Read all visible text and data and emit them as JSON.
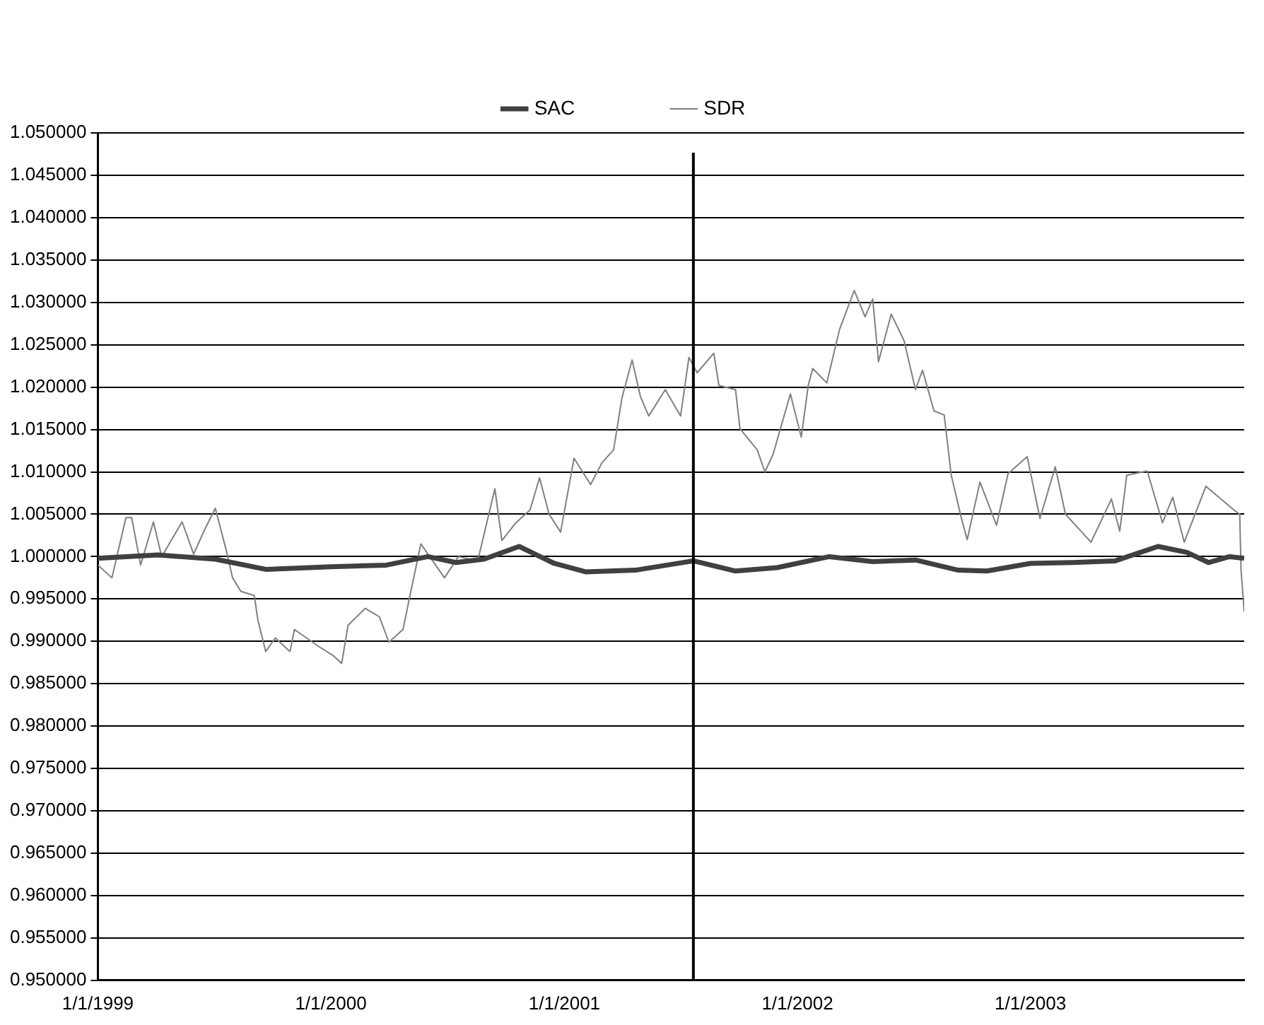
{
  "chart_data": {
    "type": "line",
    "legend": "top",
    "grid": "y",
    "marker": "none",
    "line_style": "solid",
    "xlim": [
      "1999-01-01",
      "2003-12-02"
    ],
    "xticks": [
      {
        "value": "1999-01-01",
        "label": "1/1/1999"
      },
      {
        "value": "2000-01-01",
        "label": "1/1/2000"
      },
      {
        "value": "2001-01-01",
        "label": "1/1/2001"
      },
      {
        "value": "2002-01-01",
        "label": "1/1/2002"
      },
      {
        "value": "2003-01-01",
        "label": "1/1/2003"
      }
    ],
    "ylim": [
      0.95,
      1.05
    ],
    "yticks": [
      {
        "value": 0.95,
        "label": "0.950000"
      },
      {
        "value": 0.955,
        "label": "0.955000"
      },
      {
        "value": 0.96,
        "label": "0.960000"
      },
      {
        "value": 0.965,
        "label": "0.965000"
      },
      {
        "value": 0.97,
        "label": "0.970000"
      },
      {
        "value": 0.975,
        "label": "0.975000"
      },
      {
        "value": 0.98,
        "label": "0.980000"
      },
      {
        "value": 0.985,
        "label": "0.985000"
      },
      {
        "value": 0.99,
        "label": "0.990000"
      },
      {
        "value": 0.995,
        "label": "0.995000"
      },
      {
        "value": 1.0,
        "label": "1.000000"
      },
      {
        "value": 1.005,
        "label": "1.005000"
      },
      {
        "value": 1.01,
        "label": "1.010000"
      },
      {
        "value": 1.015,
        "label": "1.015000"
      },
      {
        "value": 1.02,
        "label": "1.020000"
      },
      {
        "value": 1.025,
        "label": "1.025000"
      },
      {
        "value": 1.03,
        "label": "1.030000"
      },
      {
        "value": 1.035,
        "label": "1.035000"
      },
      {
        "value": 1.04,
        "label": "1.040000"
      },
      {
        "value": 1.045,
        "label": "1.045000"
      },
      {
        "value": 1.05,
        "label": "1.050000"
      }
    ],
    "ref_lines": [
      {
        "axis": "x",
        "value": "2001-07-22",
        "color": "#000000"
      }
    ],
    "series": [
      {
        "name": "SAC",
        "color": "#404040",
        "x": [
          "1999-01-01",
          "1999-04-05",
          "1999-07-04",
          "1999-09-21",
          "2000-01-01",
          "2000-03-28",
          "2000-06-01",
          "2000-07-15",
          "2000-08-28",
          "2000-10-22",
          "2000-12-16",
          "2001-02-03",
          "2001-04-22",
          "2001-07-22",
          "2001-09-26",
          "2001-11-30",
          "2002-02-20",
          "2002-04-29",
          "2002-07-05",
          "2002-09-10",
          "2002-10-25",
          "2003-01-01",
          "2003-03-08",
          "2003-05-14",
          "2003-07-20",
          "2003-09-03",
          "2003-10-07",
          "2003-11-09",
          "2003-12-02"
        ],
        "values": [
          0.9998,
          1.0002,
          0.9997,
          0.9985,
          0.9988,
          0.999,
          1.0,
          0.9993,
          0.9997,
          1.0012,
          0.9992,
          0.9982,
          0.9984,
          0.9995,
          0.9983,
          0.9987,
          1.0,
          0.9994,
          0.9996,
          0.9984,
          0.9983,
          0.9992,
          0.9993,
          0.9995,
          1.0012,
          1.0005,
          0.9993,
          1.0,
          0.9998
        ]
      },
      {
        "name": "SDR",
        "color": "#808080",
        "x": [
          "1999-01-01",
          "1999-01-23",
          "1999-02-14",
          "1999-02-23",
          "1999-03-09",
          "1999-03-29",
          "1999-04-11",
          "1999-05-13",
          "1999-05-31",
          "1999-06-18",
          "1999-07-04",
          "1999-07-22",
          "1999-07-31",
          "1999-08-13",
          "1999-09-03",
          "1999-09-09",
          "1999-09-21",
          "1999-10-06",
          "1999-10-29",
          "1999-11-05",
          "1999-12-13",
          "2000-01-05",
          "2000-01-18",
          "2000-01-28",
          "2000-02-24",
          "2000-03-17",
          "2000-04-01",
          "2000-04-23",
          "2000-05-04",
          "2000-05-21",
          "2000-06-27",
          "2000-07-19",
          "2000-08-17",
          "2000-08-21",
          "2000-09-14",
          "2000-09-25",
          "2000-10-17",
          "2000-11-08",
          "2000-11-23",
          "2000-12-08",
          "2000-12-26",
          "2001-01-16",
          "2001-02-11",
          "2001-03-01",
          "2001-03-19",
          "2001-04-01",
          "2001-04-17",
          "2001-04-30",
          "2001-05-13",
          "2001-06-08",
          "2001-07-02",
          "2001-07-15",
          "2001-07-28",
          "2001-08-23",
          "2001-08-31",
          "2001-09-26",
          "2001-10-03",
          "2001-10-30",
          "2001-11-11",
          "2001-11-24",
          "2001-12-21",
          "2002-01-07",
          "2002-01-18",
          "2002-01-25",
          "2002-02-16",
          "2002-03-08",
          "2002-03-31",
          "2002-04-17",
          "2002-04-29",
          "2002-05-08",
          "2002-05-28",
          "2002-06-17",
          "2002-07-05",
          "2002-07-16",
          "2002-08-03",
          "2002-08-19",
          "2002-08-30",
          "2002-09-15",
          "2002-09-24",
          "2002-10-14",
          "2002-11-09",
          "2002-11-27",
          "2002-12-27",
          "2003-01-16",
          "2003-02-09",
          "2003-02-25",
          "2003-04-06",
          "2003-05-08",
          "2003-05-21",
          "2003-06-01",
          "2003-07-03",
          "2003-07-27",
          "2003-08-12",
          "2003-08-30",
          "2003-10-03",
          "2003-11-16",
          "2003-11-25",
          "2003-11-27",
          "2003-12-02"
        ],
        "values": [
          0.999,
          0.9975,
          1.0046,
          1.0046,
          0.999,
          1.0041,
          1.0,
          1.0041,
          1.0003,
          1.0033,
          1.0057,
          1.0005,
          0.9975,
          0.9959,
          0.9954,
          0.9924,
          0.9888,
          0.9904,
          0.9888,
          0.9914,
          0.9894,
          0.9883,
          0.9874,
          0.9919,
          0.9939,
          0.9929,
          0.9899,
          0.9914,
          0.9954,
          1.0015,
          0.9975,
          1.0,
          0.9995,
          1.0004,
          1.008,
          1.0019,
          1.004,
          1.0055,
          1.0093,
          1.005,
          1.0029,
          1.0116,
          1.0085,
          1.0111,
          1.0126,
          1.0187,
          1.0232,
          1.0189,
          1.0166,
          1.0197,
          1.0166,
          1.0235,
          1.0217,
          1.024,
          1.0202,
          1.0197,
          1.0151,
          1.0126,
          1.01,
          1.0121,
          1.0192,
          1.0141,
          1.0202,
          1.0222,
          1.0205,
          1.0268,
          1.0314,
          1.0283,
          1.0304,
          1.023,
          1.0286,
          1.0255,
          1.0197,
          1.022,
          1.0172,
          1.0167,
          1.0096,
          1.0045,
          1.002,
          1.0088,
          1.0037,
          1.0098,
          1.0118,
          1.0045,
          1.0106,
          1.005,
          1.0017,
          1.0068,
          1.003,
          1.0096,
          1.0101,
          1.004,
          1.007,
          1.0017,
          1.0083,
          1.0055,
          1.005,
          0.9985,
          0.9935
        ]
      }
    ]
  }
}
